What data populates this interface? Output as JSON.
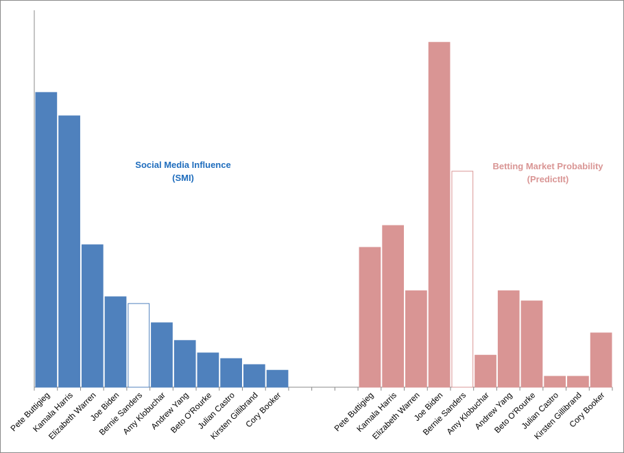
{
  "chart_data": {
    "type": "bar",
    "categories": [
      "Pete Buttigieg",
      "Kamala Harris",
      "Elizabeth Warren",
      "Joe Biden",
      "Bernie Sanders",
      "Amy Klobuchar",
      "Andrew Yang",
      "Beto O'Rourke",
      "Julian Castro",
      "Kirsten Gillibrand",
      "Cory Booker",
      null,
      null,
      null,
      "Pete Buttigieg",
      "Kamala Harris",
      "Elizabeth Warren",
      "Joe Biden",
      "Bernie Sanders",
      "Amy Klobuchar",
      "Andrew Yang",
      "Beto O'Rourke",
      "Julian Castro",
      "Kirsten Gillibrand",
      "Cory Booker"
    ],
    "series": [
      {
        "name_lines": [
          "Social Media Influence",
          "(SMI)"
        ],
        "color": "#4f81bd",
        "outline": [
          4
        ],
        "values": [
          78.2,
          72,
          37.8,
          24,
          22.2,
          17.1,
          12.4,
          9.1,
          7.6,
          6,
          4.5,
          null,
          null,
          null,
          null,
          null,
          null,
          null,
          null,
          null,
          null,
          null,
          null,
          null,
          null
        ]
      },
      {
        "name_lines": [
          "Betting Market Probability",
          "(PredictIt)"
        ],
        "color": "#d99594",
        "outline": [
          18
        ],
        "values": [
          null,
          null,
          null,
          null,
          null,
          null,
          null,
          null,
          null,
          null,
          null,
          null,
          null,
          null,
          37.1,
          42.9,
          25.6,
          91.5,
          57.3,
          8.5,
          25.6,
          22.9,
          2.9,
          2.9,
          14.4
        ]
      }
    ],
    "ylim": [
      0,
      100
    ]
  }
}
